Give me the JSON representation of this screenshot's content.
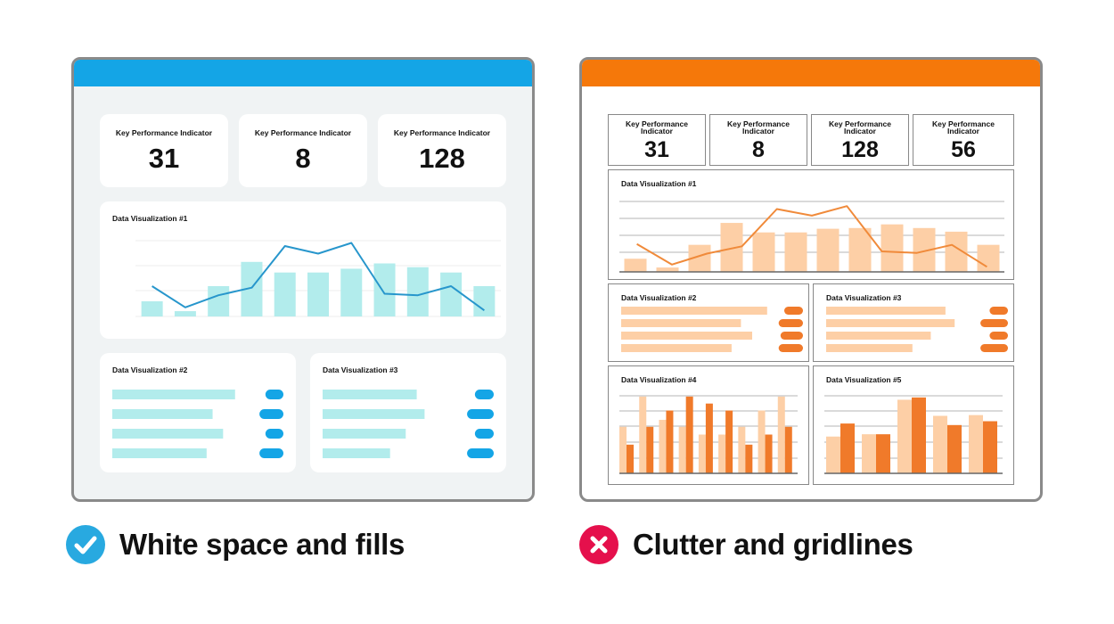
{
  "colors": {
    "good_accent": "#14a5e6",
    "good_fill": "#b2ecec",
    "bad_accent": "#f5780a",
    "bad_light": "#fdcfa6",
    "bad_dark": "#f07a2a",
    "check_badge": "#28a9e0",
    "cross_badge": "#e5104c"
  },
  "good_panel": {
    "kpis": [
      {
        "label": "Key Performance Indicator",
        "value": "31"
      },
      {
        "label": "Key Performance Indicator",
        "value": "8"
      },
      {
        "label": "Key Performance Indicator",
        "value": "128"
      }
    ],
    "viz1_title": "Data Visualization #1",
    "viz2_title": "Data Visualization #2",
    "viz3_title": "Data Visualization #3",
    "caption": "White space and fills",
    "badge_icon": "check-icon"
  },
  "bad_panel": {
    "kpis": [
      {
        "label": "Key Performance Indicator",
        "value": "31"
      },
      {
        "label": "Key Performance Indicator",
        "value": "8"
      },
      {
        "label": "Key Performance Indicator",
        "value": "128"
      },
      {
        "label": "Key Performance Indicator",
        "value": "56"
      }
    ],
    "viz1_title": "Data Visualization #1",
    "viz2_title": "Data Visualization #2",
    "viz3_title": "Data Visualization #3",
    "viz4_title": "Data Visualization #4",
    "viz5_title": "Data Visualization #5",
    "caption": "Clutter and gridlines",
    "badge_icon": "cross-icon"
  },
  "chart_data": [
    {
      "type": "bar",
      "panel": "good",
      "bars": [
        0.2,
        0.07,
        0.4,
        0.72,
        0.58,
        0.58,
        0.63,
        0.7,
        0.65,
        0.58,
        0.4
      ],
      "line": [
        0.4,
        0.12,
        0.28,
        0.38,
        0.93,
        0.83,
        0.97,
        0.3,
        0.28,
        0.4,
        0.08
      ]
    },
    {
      "type": "bar",
      "panel": "good",
      "horizontal": true,
      "bars": [
        0.82,
        0.67,
        0.74,
        0.63
      ],
      "pills": [
        0.12,
        0.16,
        0.12,
        0.16
      ]
    },
    {
      "type": "bar",
      "panel": "good",
      "horizontal": true,
      "bars": [
        0.6,
        0.65,
        0.53,
        0.43
      ],
      "pills": [
        0.12,
        0.17,
        0.12,
        0.17
      ]
    },
    {
      "type": "bar",
      "panel": "bad",
      "bars": [
        0.18,
        0.06,
        0.37,
        0.67,
        0.54,
        0.54,
        0.59,
        0.6,
        0.65,
        0.6,
        0.55,
        0.37
      ],
      "line": [
        0.38,
        0.1,
        0.25,
        0.35,
        0.86,
        0.77,
        0.9,
        0.28,
        0.26,
        0.37,
        0.07
      ]
    },
    {
      "type": "bar",
      "panel": "bad",
      "horizontal": true,
      "bars": [
        0.78,
        0.64,
        0.7,
        0.59
      ],
      "pills": [
        0.1,
        0.13,
        0.12,
        0.13
      ]
    },
    {
      "type": "bar",
      "panel": "bad",
      "horizontal": true,
      "bars": [
        0.65,
        0.7,
        0.57,
        0.47
      ],
      "pills": [
        0.1,
        0.15,
        0.1,
        0.15
      ]
    },
    {
      "type": "bar",
      "panel": "bad",
      "groups": [
        [
          0.6,
          0.37
        ],
        [
          0.99,
          0.6
        ],
        [
          0.69,
          0.81
        ],
        [
          0.6,
          0.99
        ],
        [
          0.5,
          0.9
        ],
        [
          0.5,
          0.81
        ],
        [
          0.6,
          0.37
        ],
        [
          0.81,
          0.5
        ],
        [
          0.99,
          0.6
        ]
      ]
    },
    {
      "type": "bar",
      "panel": "bad",
      "groups": [
        [
          0.48,
          0.65
        ],
        [
          0.51,
          0.51
        ],
        [
          0.96,
          0.99
        ],
        [
          0.75,
          0.63
        ],
        [
          0.76,
          0.68
        ]
      ]
    }
  ]
}
